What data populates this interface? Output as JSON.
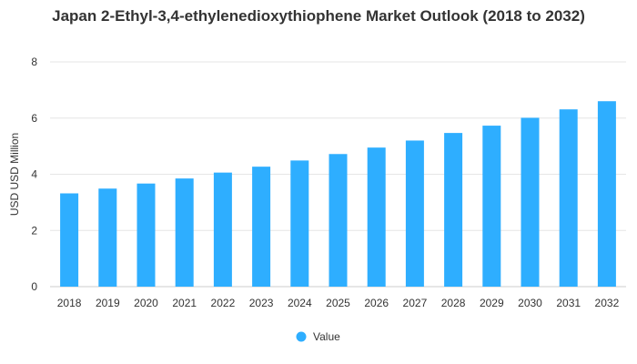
{
  "chart_data": {
    "type": "bar",
    "title": "Japan 2-Ethyl-3,4-ethylenedioxythiophene Market Outlook (2018 to 2032)",
    "xlabel": "",
    "ylabel": "USD USD Million",
    "categories": [
      "2018",
      "2019",
      "2020",
      "2021",
      "2022",
      "2023",
      "2024",
      "2025",
      "2026",
      "2027",
      "2028",
      "2029",
      "2030",
      "2031",
      "2032"
    ],
    "series": [
      {
        "name": "Value",
        "values": [
          3.32,
          3.49,
          3.67,
          3.85,
          4.06,
          4.27,
          4.49,
          4.72,
          4.95,
          5.2,
          5.47,
          5.73,
          6.01,
          6.31,
          6.6
        ]
      }
    ],
    "ylim": [
      0,
      8
    ],
    "yticks": [
      0,
      2,
      4,
      6,
      8
    ],
    "grid": true,
    "legend_position": "bottom",
    "bar_color": "#2eaeff"
  }
}
